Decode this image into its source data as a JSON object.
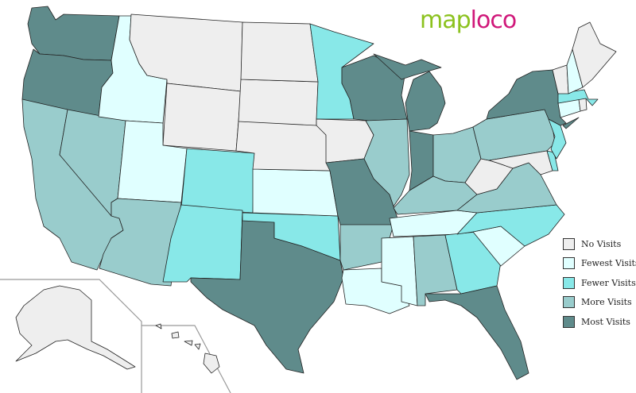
{
  "logo": {
    "part1": "map",
    "part2": "loco"
  },
  "legend": [
    {
      "key": "no",
      "label": "No Visits",
      "color": "#eeeeee"
    },
    {
      "key": "fewest",
      "label": "Fewest Visits",
      "color": "#e0ffff"
    },
    {
      "key": "fewer",
      "label": "Fewer Visits",
      "color": "#88e8e8"
    },
    {
      "key": "more",
      "label": "More Visits",
      "color": "#99cccc"
    },
    {
      "key": "most",
      "label": "Most Visits",
      "color": "#5f8b8b"
    }
  ],
  "states": {
    "WA": "most",
    "OR": "most",
    "ID": "fewest",
    "MT": "no",
    "WY": "no",
    "ND": "no",
    "SD": "no",
    "NE": "no",
    "KS": "fewest",
    "OK": "fewer",
    "TX": "most",
    "NM": "fewer",
    "CO": "fewer",
    "UT": "fewest",
    "AZ": "more",
    "NV": "more",
    "CA": "more",
    "MN": "fewer",
    "IA": "no",
    "MO": "most",
    "AR": "more",
    "LA": "fewest",
    "WI": "most",
    "IL": "more",
    "MI": "most",
    "IN": "most",
    "OH": "more",
    "KY": "more",
    "TN": "fewest",
    "MS": "fewest",
    "AL": "more",
    "GA": "fewer",
    "FL": "most",
    "SC": "fewest",
    "NC": "fewer",
    "VA": "more",
    "WV": "no",
    "MD": "no",
    "DE": "fewer",
    "NJ": "fewer",
    "PA": "more",
    "NY": "most",
    "CT": "fewest",
    "RI": "no",
    "MA": "fewer",
    "VT": "no",
    "NH": "fewest",
    "ME": "no",
    "AK": "no",
    "HI": "no"
  }
}
